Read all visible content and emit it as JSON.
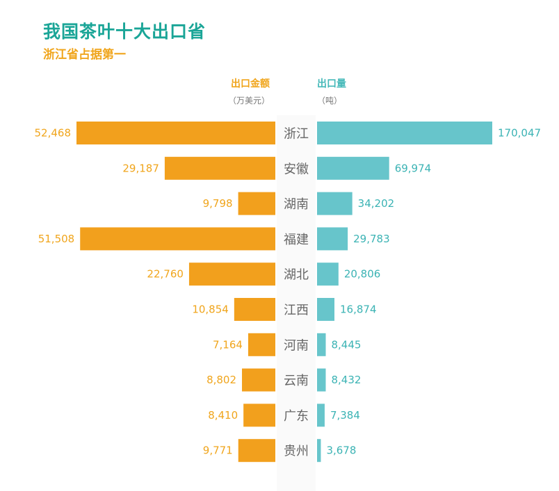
{
  "header": {
    "title": "我国茶叶十大出口省",
    "subtitle": "浙江省占据第一",
    "left_label": "出口金额",
    "left_unit": "（万美元）",
    "right_label": "出口量",
    "right_unit": "（吨）"
  },
  "colors": {
    "title": "#1aa597",
    "left_bar": "#f2a01d",
    "right_bar": "#67c5cb",
    "left_text": "#f0a51c",
    "right_text": "#3bb3b4",
    "province_text": "#666666"
  },
  "chart_data": {
    "type": "bar",
    "orientation": "horizontal-butterfly",
    "categories": [
      "浙江",
      "安徽",
      "湖南",
      "福建",
      "湖北",
      "江西",
      "河南",
      "云南",
      "广东",
      "贵州"
    ],
    "series": [
      {
        "name": "出口金额",
        "side": "left",
        "values": [
          52468,
          29187,
          9798,
          51508,
          22760,
          10854,
          7164,
          8802,
          8410,
          9771
        ],
        "labels": [
          "52,468",
          "29,187",
          "9,798",
          "51,508",
          "22,760",
          "10,854",
          "7,164",
          "8,802",
          "8,410",
          "9,771"
        ]
      },
      {
        "name": "出口量",
        "side": "right",
        "values": [
          170047,
          69974,
          34202,
          29783,
          20806,
          16874,
          8445,
          8432,
          7384,
          3678
        ],
        "labels": [
          "170,047",
          "69,974",
          "34,202",
          "29,783",
          "20,806",
          "16,874",
          "8,445",
          "8,432",
          "7,384",
          "3,678"
        ]
      }
    ],
    "legend": "none",
    "grid": false
  }
}
